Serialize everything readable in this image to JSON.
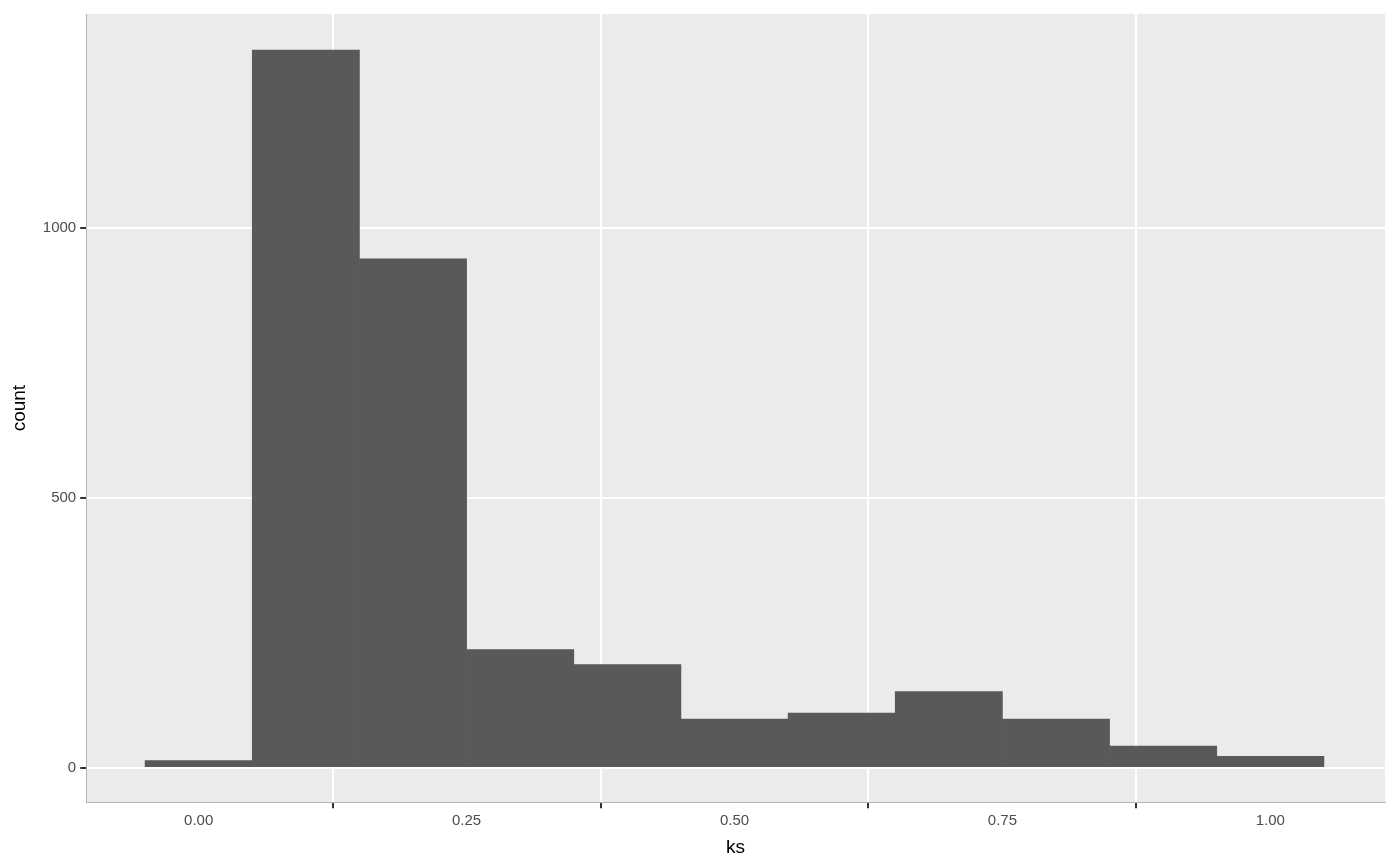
{
  "chart_data": {
    "type": "histogram",
    "x_label": "ks",
    "y_label": "count",
    "bins": [
      -0.05,
      0.05,
      0.15,
      0.25,
      0.35,
      0.45,
      0.55,
      0.65,
      0.75,
      0.85,
      0.95,
      1.05
    ],
    "values": [
      13,
      1330,
      943,
      219,
      191,
      90,
      101,
      141,
      90,
      40,
      21
    ],
    "color": "#595959",
    "xlim": [
      -0.105,
      1.107
    ],
    "xticks": [
      {
        "value": 0,
        "label": "0.00"
      },
      {
        "value": 0.25,
        "label": "0.25"
      },
      {
        "value": 0.5,
        "label": "0.50"
      },
      {
        "value": 0.75,
        "label": "0.75"
      },
      {
        "value": 1,
        "label": "1.00"
      }
    ],
    "ylim": [
      -64,
      1397
    ],
    "yticks": [
      0,
      500,
      1000
    ],
    "grid": true
  }
}
